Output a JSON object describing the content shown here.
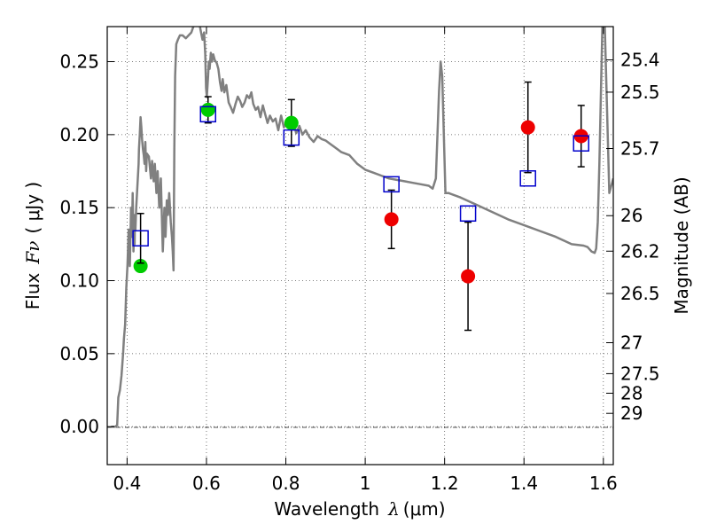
{
  "chart_data": {
    "type": "scatter",
    "title": "",
    "xlabel_main": "Wavelength",
    "xlabel_symbol": "λ",
    "xlabel_unit": "(μm)",
    "ylabel_main": "Flux",
    "ylabel_symbol": "Fν",
    "ylabel_unit": "( μJy )",
    "y2label": "Magnitude (AB)",
    "xlim": [
      0.35,
      1.625
    ],
    "ylim": [
      -0.026,
      0.274
    ],
    "grid": true,
    "x_ticks": [
      {
        "v": 0.4,
        "label": "0.4"
      },
      {
        "v": 0.6,
        "label": "0.6"
      },
      {
        "v": 0.8,
        "label": "0.8"
      },
      {
        "v": 1.0,
        "label": "1"
      },
      {
        "v": 1.2,
        "label": "1.2"
      },
      {
        "v": 1.4,
        "label": "1.4"
      },
      {
        "v": 1.6,
        "label": "1.6"
      }
    ],
    "y_ticks": [
      {
        "v": 0.0,
        "label": "0.00"
      },
      {
        "v": 0.05,
        "label": "0.05"
      },
      {
        "v": 0.1,
        "label": "0.10"
      },
      {
        "v": 0.15,
        "label": "0.15"
      },
      {
        "v": 0.2,
        "label": "0.20"
      },
      {
        "v": 0.25,
        "label": "0.25"
      }
    ],
    "mag_ticks": [
      {
        "label": "25.4",
        "flux": 0.2512
      },
      {
        "label": "25.5",
        "flux": 0.2291
      },
      {
        "label": "25.7",
        "flux": 0.1905
      },
      {
        "label": "26",
        "flux": 0.1445
      },
      {
        "label": "26.2",
        "flux": 0.1202
      },
      {
        "label": "26.5",
        "flux": 0.0912
      },
      {
        "label": "27",
        "flux": 0.0575
      },
      {
        "label": "27.5",
        "flux": 0.0363
      },
      {
        "label": "28",
        "flux": 0.0229
      },
      {
        "label": "29",
        "flux": 0.0091
      }
    ],
    "colors": {
      "model": "#808080",
      "green": "#00cc00",
      "red": "#ee0000",
      "square": "#0000cc",
      "errorbar": "#000000",
      "grid": "#555555"
    },
    "model_sed": {
      "x": [
        0.36,
        0.37,
        0.375,
        0.378,
        0.382,
        0.386,
        0.39,
        0.392,
        0.395,
        0.398,
        0.401,
        0.404,
        0.407,
        0.41,
        0.412,
        0.414,
        0.416,
        0.418,
        0.419,
        0.42,
        0.421,
        0.423,
        0.425,
        0.427,
        0.429,
        0.43,
        0.432,
        0.434,
        0.436,
        0.438,
        0.44,
        0.442,
        0.444,
        0.446,
        0.448,
        0.45,
        0.455,
        0.46,
        0.463,
        0.467,
        0.47,
        0.474,
        0.477,
        0.481,
        0.485,
        0.49,
        0.494,
        0.497,
        0.5,
        0.503,
        0.506,
        0.51,
        0.513,
        0.515,
        0.517,
        0.519,
        0.521,
        0.524,
        0.528,
        0.533,
        0.54,
        0.548,
        0.555,
        0.562,
        0.567,
        0.571,
        0.575,
        0.58,
        0.585,
        0.59,
        0.594,
        0.597,
        0.599,
        0.601,
        0.604,
        0.606,
        0.608,
        0.611,
        0.614,
        0.617,
        0.621,
        0.626,
        0.63,
        0.634,
        0.638,
        0.641,
        0.645,
        0.65,
        0.656,
        0.661,
        0.667,
        0.673,
        0.679,
        0.685,
        0.69,
        0.696,
        0.702,
        0.708,
        0.713,
        0.718,
        0.724,
        0.73,
        0.736,
        0.742,
        0.748,
        0.754,
        0.76,
        0.767,
        0.774,
        0.781,
        0.788,
        0.795,
        0.803,
        0.811,
        0.818,
        0.826,
        0.834,
        0.842,
        0.85,
        0.86,
        0.87,
        0.88,
        0.89,
        0.9,
        0.91,
        0.92,
        0.94,
        0.96,
        0.98,
        1.0,
        1.02,
        1.04,
        1.06,
        1.08,
        1.1,
        1.12,
        1.14,
        1.16,
        1.17,
        1.178,
        1.182,
        1.186,
        1.19,
        1.194,
        1.198,
        1.202,
        1.21,
        1.24,
        1.28,
        1.32,
        1.36,
        1.4,
        1.44,
        1.48,
        1.52,
        1.55,
        1.56,
        1.57,
        1.578,
        1.582,
        1.586,
        1.59,
        1.594,
        1.598,
        1.602,
        1.606,
        1.615,
        1.625
      ],
      "y": [
        0.0,
        0.0,
        0.001,
        0.02,
        0.025,
        0.035,
        0.05,
        0.06,
        0.07,
        0.095,
        0.11,
        0.135,
        0.11,
        0.15,
        0.13,
        0.16,
        0.12,
        0.14,
        0.125,
        0.145,
        0.135,
        0.15,
        0.16,
        0.17,
        0.18,
        0.19,
        0.2,
        0.212,
        0.205,
        0.196,
        0.19,
        0.186,
        0.18,
        0.195,
        0.175,
        0.187,
        0.185,
        0.17,
        0.182,
        0.168,
        0.18,
        0.16,
        0.175,
        0.15,
        0.17,
        0.12,
        0.15,
        0.13,
        0.155,
        0.145,
        0.16,
        0.14,
        0.13,
        0.12,
        0.107,
        0.19,
        0.24,
        0.262,
        0.265,
        0.268,
        0.268,
        0.266,
        0.268,
        0.27,
        0.274,
        0.277,
        0.278,
        0.28,
        0.272,
        0.265,
        0.27,
        0.255,
        0.232,
        0.226,
        0.24,
        0.25,
        0.245,
        0.256,
        0.25,
        0.255,
        0.251,
        0.249,
        0.245,
        0.236,
        0.23,
        0.238,
        0.229,
        0.234,
        0.222,
        0.219,
        0.215,
        0.221,
        0.226,
        0.223,
        0.219,
        0.222,
        0.227,
        0.225,
        0.229,
        0.221,
        0.217,
        0.219,
        0.212,
        0.22,
        0.214,
        0.208,
        0.213,
        0.209,
        0.211,
        0.203,
        0.213,
        0.205,
        0.209,
        0.204,
        0.21,
        0.201,
        0.206,
        0.2,
        0.203,
        0.198,
        0.195,
        0.199,
        0.197,
        0.196,
        0.194,
        0.192,
        0.188,
        0.186,
        0.18,
        0.176,
        0.174,
        0.172,
        0.17,
        0.169,
        0.168,
        0.167,
        0.166,
        0.165,
        0.163,
        0.17,
        0.2,
        0.23,
        0.25,
        0.24,
        0.2,
        0.16,
        0.16,
        0.157,
        0.152,
        0.147,
        0.142,
        0.138,
        0.134,
        0.13,
        0.125,
        0.124,
        0.123,
        0.12,
        0.119,
        0.122,
        0.14,
        0.18,
        0.23,
        0.28,
        0.29,
        0.25,
        0.16,
        0.17
      ]
    },
    "series": [
      {
        "marker": "circle",
        "color": "green",
        "x": [
          0.434,
          0.604,
          0.814
        ],
        "y": [
          0.11,
          0.217,
          0.208
        ],
        "err": [
          null,
          0.009,
          0.016
        ]
      },
      {
        "marker": "circle",
        "color": "red",
        "x": [
          1.066,
          1.259,
          1.41,
          1.544
        ],
        "y": [
          0.142,
          0.103,
          0.205,
          0.199
        ],
        "err": [
          0.02,
          0.037,
          0.031,
          0.021
        ]
      },
      {
        "marker": "square",
        "color": "square",
        "x": [
          0.434,
          0.604,
          0.814,
          1.066,
          1.259,
          1.41,
          1.544
        ],
        "y": [
          0.129,
          0.214,
          0.198,
          0.166,
          0.146,
          0.17,
          0.194
        ],
        "err": [
          0.017,
          null,
          null,
          null,
          null,
          null,
          null
        ]
      }
    ]
  }
}
